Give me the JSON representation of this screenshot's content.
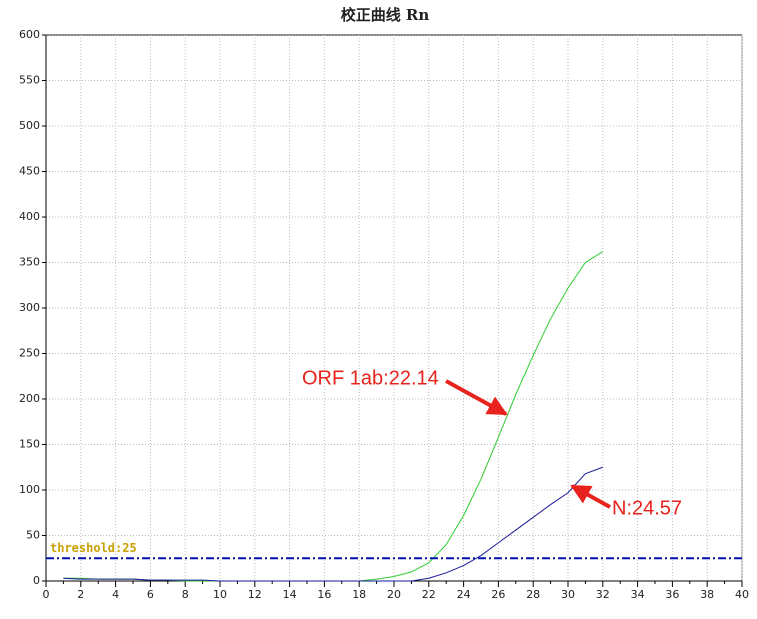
{
  "chart_data": {
    "type": "line",
    "title": "校正曲线 Rn",
    "x": [
      1,
      2,
      3,
      4,
      5,
      6,
      7,
      8,
      9,
      10,
      11,
      12,
      13,
      14,
      15,
      16,
      17,
      18,
      19,
      20,
      21,
      22,
      23,
      24,
      25,
      26,
      27,
      28,
      29,
      30,
      31,
      32
    ],
    "series": [
      {
        "color": "#2ecc2e",
        "values": [
          3,
          3,
          2,
          2,
          2,
          1,
          1,
          0,
          0,
          0,
          0,
          0,
          0,
          0,
          0,
          0,
          0,
          0,
          2,
          5,
          10,
          20,
          40,
          72,
          112,
          158,
          205,
          248,
          288,
          322,
          350,
          362
        ]
      },
      {
        "color": "#1a1a9a",
        "values": [
          3,
          2,
          2,
          2,
          2,
          1,
          1,
          1,
          1,
          0,
          0,
          0,
          0,
          0,
          0,
          0,
          0,
          0,
          0,
          0,
          0,
          3,
          9,
          17,
          28,
          42,
          56,
          70,
          84,
          97,
          118,
          125
        ]
      }
    ],
    "xlim": [
      0,
      40
    ],
    "xticks": [
      0,
      2,
      4,
      6,
      8,
      10,
      12,
      14,
      16,
      18,
      20,
      22,
      24,
      26,
      28,
      30,
      32,
      34,
      36,
      38,
      40
    ],
    "ylim": [
      0,
      600
    ],
    "yticks": [
      0,
      50,
      100,
      150,
      200,
      250,
      300,
      350,
      400,
      450,
      500,
      550,
      600
    ],
    "grid": true,
    "threshold": {
      "value": 25,
      "label": "threshold:25",
      "color": "#0010b0"
    },
    "annotations": [
      "ORF 1ab:22.14",
      "N:24.57"
    ]
  }
}
